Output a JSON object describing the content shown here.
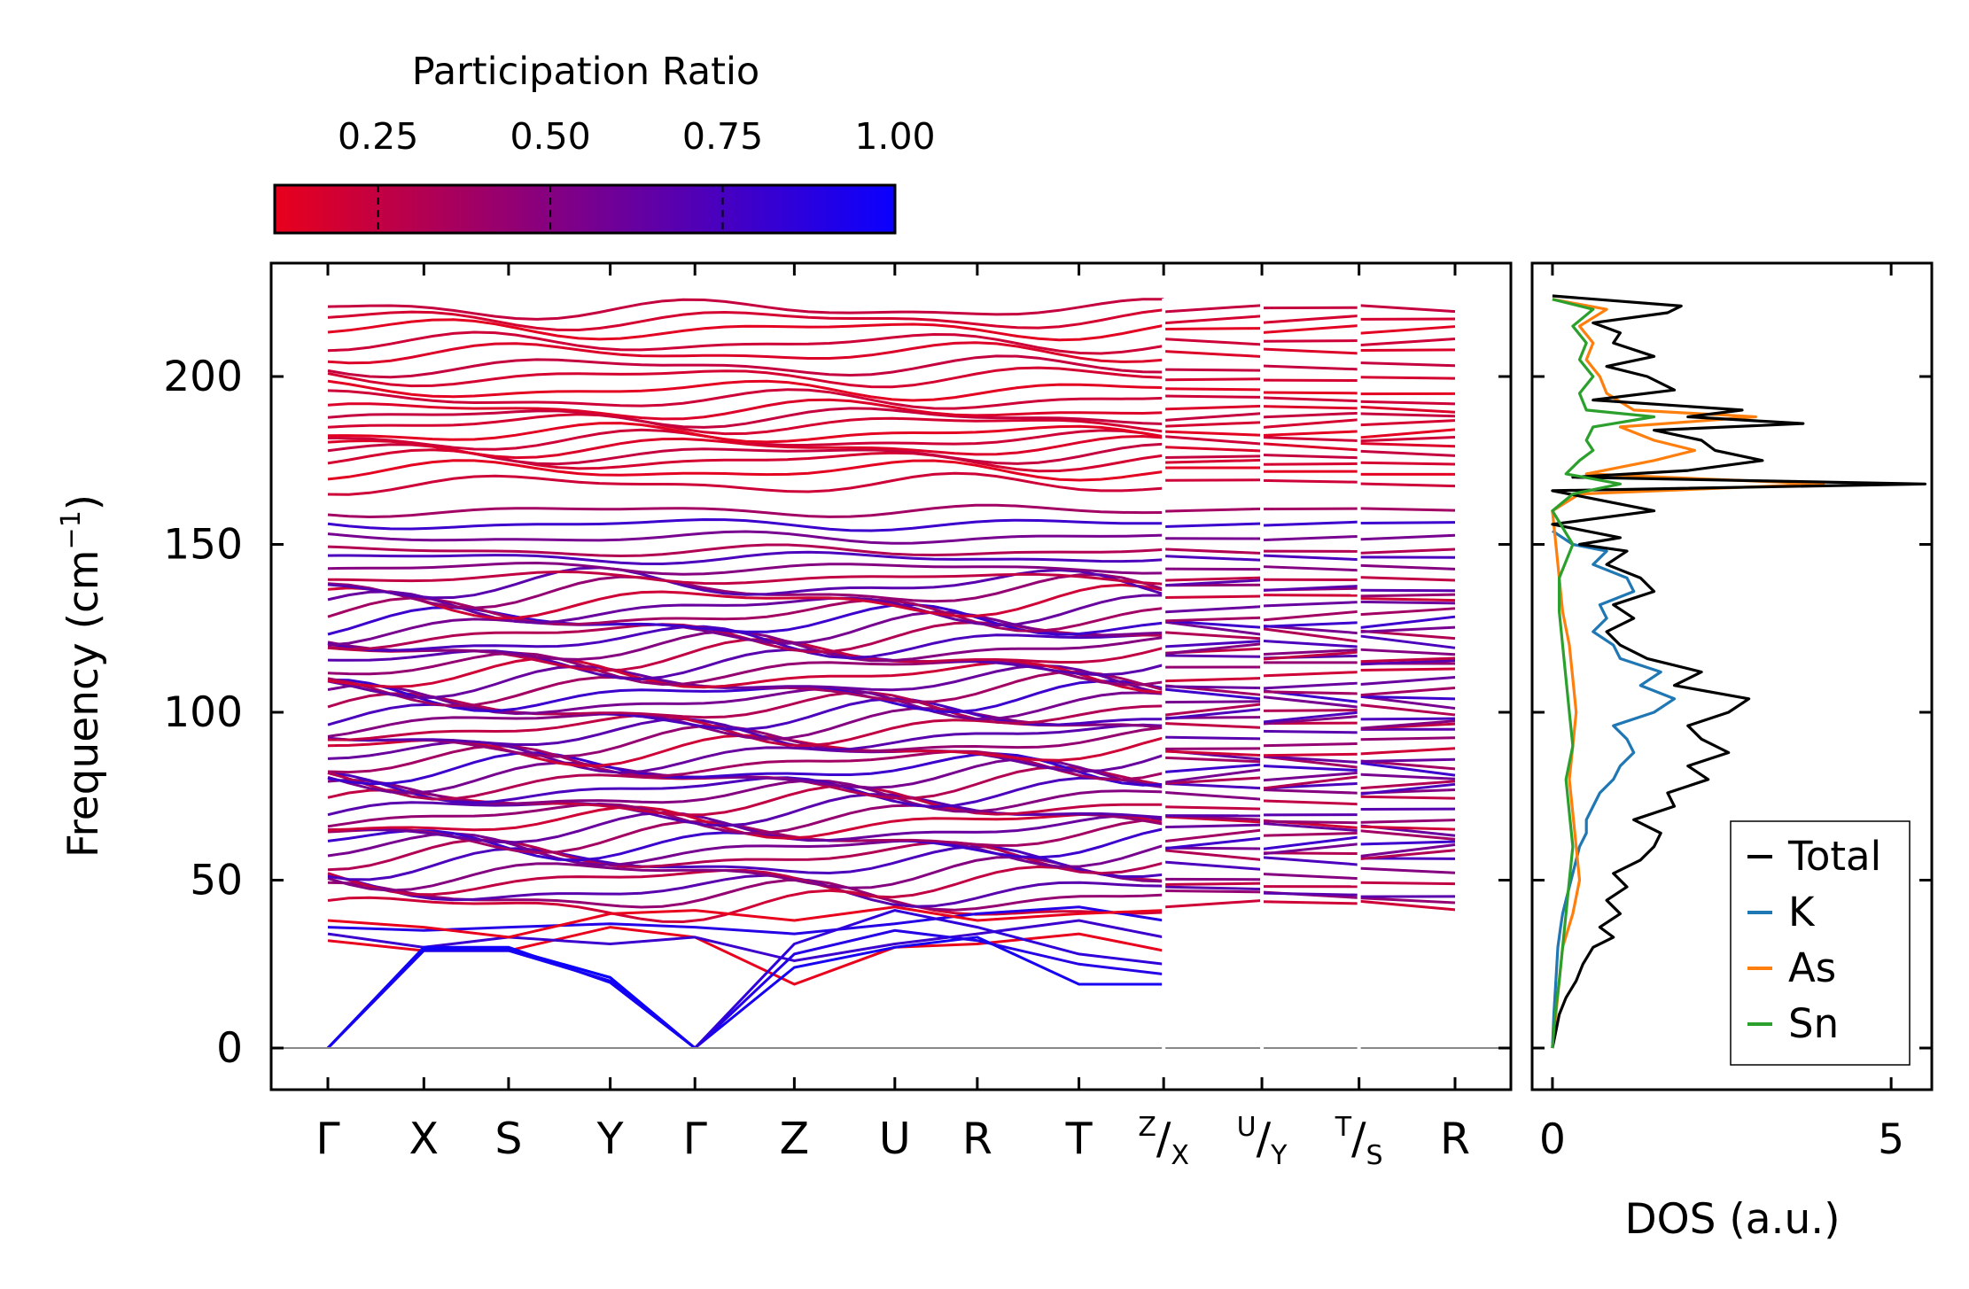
{
  "chart_data": [
    {
      "type": "line",
      "subtype": "phonon-band-structure",
      "ylabel": "Frequency (cm",
      "ylabel_sup": "−1",
      "ylabel_close": ")",
      "ylim": [
        -11,
        233
      ],
      "yticks": [
        0,
        50,
        100,
        150,
        200
      ],
      "ytick_labels": [
        "0",
        "50",
        "100",
        "150",
        "200"
      ],
      "xtick_labels": [
        {
          "main": "Γ"
        },
        {
          "main": "X"
        },
        {
          "main": "S"
        },
        {
          "main": "Y"
        },
        {
          "main": "Γ"
        },
        {
          "main": "Z"
        },
        {
          "main": "U"
        },
        {
          "main": "R"
        },
        {
          "main": "T"
        },
        {
          "sup": "Z",
          "sub": "X"
        },
        {
          "sup": "U",
          "sub": "Y"
        },
        {
          "sup": "T",
          "sub": "S"
        },
        {
          "main": "R"
        }
      ],
      "high_symmetry_positions": [
        0,
        0.85,
        1.6,
        2.5,
        3.25,
        4.13,
        5.02,
        5.75,
        6.65,
        7.4,
        8.27,
        9.13,
        9.98
      ],
      "segment_breaks_after": [
        9,
        10,
        11
      ],
      "acoustic_branches": [
        {
          "points": [
            [
              0,
              0
            ],
            [
              0.85,
              29.5
            ],
            [
              1.6,
              29.5
            ],
            [
              2.5,
              21
            ],
            [
              3.25,
              0
            ]
          ],
          "pr": 1.0
        },
        {
          "points": [
            [
              0,
              0
            ],
            [
              0.85,
              29.5
            ],
            [
              1.6,
              29.5
            ],
            [
              2.5,
              21
            ],
            [
              3.25,
              0
            ]
          ],
          "pr": 1.0
        },
        {
          "points": [
            [
              0,
              0
            ],
            [
              0.85,
              30
            ],
            [
              1.6,
              30
            ],
            [
              2.5,
              19.5
            ],
            [
              3.25,
              0
            ]
          ],
          "pr": 0.97
        },
        {
          "points": [
            [
              0,
              0
            ],
            [
              0.85,
              29
            ],
            [
              1.6,
              29
            ],
            [
              2.5,
              20
            ],
            [
              3.25,
              0
            ]
          ],
          "pr": 0.95
        },
        {
          "points": [
            [
              3.25,
              0
            ],
            [
              4.13,
              24
            ],
            [
              5.02,
              30
            ],
            [
              5.75,
              33
            ],
            [
              6.65,
              19
            ],
            [
              7.4,
              19
            ]
          ],
          "pr": 0.95
        },
        {
          "points": [
            [
              3.25,
              0
            ],
            [
              4.13,
              28
            ],
            [
              5.02,
              35
            ],
            [
              5.75,
              32
            ],
            [
              6.65,
              25
            ],
            [
              7.4,
              22
            ]
          ],
          "pr": 0.9
        },
        {
          "points": [
            [
              3.25,
              0
            ],
            [
              4.13,
              31
            ],
            [
              5.02,
              41
            ],
            [
              5.75,
              36
            ],
            [
              6.65,
              28
            ],
            [
              7.4,
              25
            ]
          ],
          "pr": 0.85
        }
      ],
      "low_optical_branches": [
        {
          "points": [
            [
              0,
              32
            ],
            [
              0.85,
              29
            ],
            [
              1.6,
              29
            ],
            [
              2.5,
              36
            ],
            [
              3.25,
              33
            ],
            [
              4.13,
              19
            ],
            [
              5.02,
              30
            ],
            [
              5.75,
              31
            ],
            [
              6.65,
              34
            ],
            [
              7.4,
              29
            ]
          ],
          "pr": 0.05
        },
        {
          "points": [
            [
              0,
              34
            ],
            [
              0.85,
              30
            ],
            [
              1.6,
              33
            ],
            [
              2.5,
              31
            ],
            [
              3.25,
              33
            ],
            [
              4.13,
              26
            ],
            [
              5.02,
              31
            ],
            [
              5.75,
              34
            ],
            [
              6.65,
              38
            ],
            [
              7.4,
              33
            ]
          ],
          "pr": 0.8
        },
        {
          "points": [
            [
              0,
              36
            ],
            [
              0.85,
              35
            ],
            [
              1.6,
              36
            ],
            [
              2.5,
              37
            ],
            [
              3.25,
              36
            ],
            [
              4.13,
              34
            ],
            [
              5.02,
              37
            ],
            [
              5.75,
              40
            ],
            [
              6.65,
              42
            ],
            [
              7.4,
              38
            ]
          ],
          "pr": 0.9
        },
        {
          "points": [
            [
              0,
              38
            ],
            [
              0.85,
              36
            ],
            [
              1.6,
              33
            ],
            [
              2.5,
              40
            ],
            [
              3.25,
              41
            ],
            [
              4.13,
              38
            ],
            [
              5.02,
              42
            ],
            [
              5.75,
              38
            ],
            [
              6.65,
              40
            ],
            [
              7.4,
              41
            ]
          ],
          "pr": 0.1
        }
      ],
      "optical_band_frequencies": [
        42,
        45,
        47,
        50,
        52,
        55,
        57,
        59,
        61,
        63,
        65,
        67,
        69,
        71,
        73,
        75,
        77,
        79,
        81,
        83,
        85,
        87,
        89,
        91,
        93,
        95,
        97,
        99,
        101,
        103,
        105,
        107,
        109,
        111,
        113,
        115,
        117,
        119,
        121,
        123,
        125,
        127,
        129,
        131,
        133,
        136,
        138,
        140,
        143,
        146,
        148,
        152,
        156,
        160,
        168,
        172,
        175,
        177,
        179,
        181,
        183,
        186,
        188,
        190,
        193,
        196,
        200,
        203,
        207,
        210,
        214,
        217,
        220
      ],
      "colorbar": {
        "title": "Participation Ratio",
        "min": 0.1,
        "max": 1.0,
        "ticks": [
          0.25,
          0.5,
          0.75,
          1.0
        ],
        "tick_labels": [
          "0.25",
          "0.50",
          "0.75",
          "1.00"
        ],
        "color_low": "#e8001c",
        "color_high": "#0a00ff"
      }
    },
    {
      "type": "line",
      "subtype": "phonon-density-of-states",
      "xlabel": "DOS (a.u.)",
      "xlim": [
        -0.3,
        5.6
      ],
      "xticks": [
        0,
        5
      ],
      "xtick_labels": [
        "0",
        "5"
      ],
      "ylim": [
        -11,
        233
      ],
      "legend_position": "lower-right",
      "series": [
        {
          "name": "Total",
          "color": "#000000",
          "freq": [
            0,
            5,
            10,
            15,
            20,
            25,
            30,
            33,
            36,
            40,
            44,
            48,
            52,
            56,
            60,
            64,
            68,
            72,
            76,
            80,
            84,
            88,
            92,
            96,
            100,
            104,
            108,
            112,
            116,
            120,
            124,
            128,
            132,
            136,
            140,
            144,
            148,
            150,
            152,
            156,
            160,
            164,
            166,
            168,
            170,
            172,
            175,
            178,
            181,
            184,
            186,
            188,
            190,
            193,
            196,
            200,
            203,
            206,
            210,
            213,
            216,
            219,
            221,
            224
          ],
          "dos": [
            0,
            0.05,
            0.1,
            0.2,
            0.35,
            0.45,
            0.6,
            0.9,
            0.7,
            1.0,
            0.8,
            1.1,
            0.9,
            1.3,
            1.5,
            1.6,
            1.2,
            1.8,
            1.7,
            2.3,
            2.0,
            2.6,
            2.2,
            2.0,
            2.6,
            2.9,
            1.8,
            2.2,
            1.4,
            1.0,
            0.8,
            1.2,
            0.9,
            1.5,
            1.3,
            0.8,
            1.1,
            0.4,
            1.0,
            0,
            1.5,
            0.5,
            0,
            5.5,
            0.3,
            2.0,
            3.1,
            2.4,
            2.2,
            1.5,
            3.7,
            2.0,
            2.8,
            0.6,
            1.8,
            1.4,
            0.8,
            1.5,
            0.9,
            1.0,
            0.6,
            1.7,
            1.9,
            0
          ]
        },
        {
          "name": "K",
          "color": "#1f77b4",
          "freq": [
            0,
            10,
            20,
            30,
            36,
            40,
            44,
            48,
            52,
            56,
            60,
            64,
            68,
            72,
            76,
            80,
            84,
            88,
            92,
            96,
            100,
            104,
            108,
            112,
            116,
            120,
            124,
            128,
            132,
            136,
            140,
            144,
            148,
            150,
            154
          ],
          "dos": [
            0,
            0.02,
            0.05,
            0.08,
            0.12,
            0.15,
            0.2,
            0.25,
            0.3,
            0.35,
            0.4,
            0.5,
            0.5,
            0.6,
            0.7,
            0.9,
            1.0,
            1.2,
            1.1,
            0.9,
            1.5,
            1.8,
            1.3,
            1.6,
            1.0,
            0.9,
            0.6,
            0.8,
            0.7,
            1.2,
            1.1,
            0.6,
            0.8,
            0.3,
            0
          ]
        },
        {
          "name": "As",
          "color": "#ff7f0e",
          "freq": [
            0,
            10,
            20,
            30,
            40,
            50,
            60,
            70,
            80,
            90,
            100,
            110,
            120,
            130,
            140,
            150,
            160,
            165,
            168,
            171,
            175,
            178,
            181,
            185,
            188,
            190,
            195,
            200,
            205,
            210,
            215,
            220,
            223
          ],
          "dos": [
            0,
            0.05,
            0.1,
            0.15,
            0.3,
            0.4,
            0.35,
            0.3,
            0.25,
            0.3,
            0.35,
            0.3,
            0.25,
            0.15,
            0.1,
            0.05,
            0,
            0.4,
            4.0,
            0.5,
            1.5,
            2.1,
            1.5,
            1.0,
            3.0,
            1.2,
            0.8,
            0.7,
            0.5,
            0.6,
            0.4,
            0.8,
            0
          ]
        },
        {
          "name": "Sn",
          "color": "#2ca02c",
          "freq": [
            0,
            10,
            20,
            30,
            40,
            50,
            60,
            70,
            80,
            90,
            100,
            110,
            120,
            130,
            140,
            150,
            160,
            165,
            168,
            171,
            175,
            178,
            181,
            185,
            188,
            190,
            195,
            200,
            205,
            210,
            215,
            220,
            223
          ],
          "dos": [
            0,
            0.04,
            0.1,
            0.15,
            0.2,
            0.25,
            0.3,
            0.25,
            0.2,
            0.3,
            0.25,
            0.2,
            0.15,
            0.1,
            0.1,
            0.3,
            0,
            0.3,
            1.0,
            0.2,
            0.4,
            0.6,
            0.5,
            0.6,
            1.5,
            0.5,
            0.4,
            0.6,
            0.4,
            0.5,
            0.3,
            0.6,
            0
          ]
        }
      ]
    }
  ]
}
